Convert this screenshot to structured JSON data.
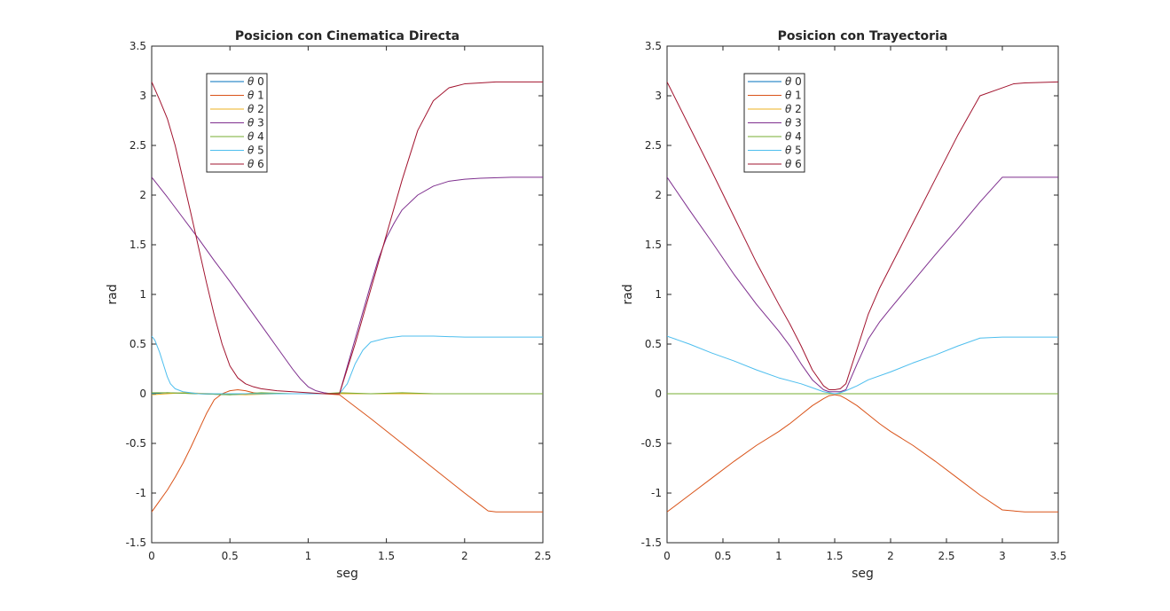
{
  "colors": {
    "series": [
      "#0072BD",
      "#D95319",
      "#EDB120",
      "#7E2F8E",
      "#77AC30",
      "#4DBEEE",
      "#A2142F"
    ],
    "axes": "#262626",
    "background": "#ffffff"
  },
  "chart_data": [
    {
      "type": "line",
      "title": "Posicion con Cinematica Directa",
      "xlabel": "seg",
      "ylabel": "rad",
      "xlim": [
        0,
        2.5
      ],
      "ylim": [
        -1.5,
        3.5
      ],
      "xticks": [
        0,
        0.5,
        1,
        1.5,
        2,
        2.5
      ],
      "xtick_labels": [
        "0",
        "0.5",
        "1",
        "1.5",
        "2",
        "2.5"
      ],
      "yticks": [
        -1.5,
        -1,
        -0.5,
        0,
        0.5,
        1,
        1.5,
        2,
        2.5,
        3,
        3.5
      ],
      "ytick_labels": [
        "-1.5",
        "-1",
        "-0.5",
        "0",
        "0.5",
        "1",
        "1.5",
        "2",
        "2.5",
        "3",
        "3.5"
      ],
      "grid": false,
      "legend_position": "top-left",
      "series": [
        {
          "name": "θ 0",
          "x": [
            0,
            0.1,
            0.3,
            0.5,
            0.7,
            0.9,
            1.1,
            1.2,
            1.4,
            1.6,
            1.8,
            2.0,
            2.2,
            2.5
          ],
          "y": [
            0.0,
            0.01,
            0.0,
            -0.01,
            0.0,
            0.0,
            0.0,
            0.0,
            0.0,
            0.0,
            0.0,
            0.0,
            0.0,
            0.0
          ]
        },
        {
          "name": "θ 1",
          "x": [
            0,
            0.05,
            0.1,
            0.15,
            0.2,
            0.25,
            0.3,
            0.35,
            0.4,
            0.45,
            0.5,
            0.55,
            0.6,
            0.65,
            0.7,
            0.8,
            0.9,
            1.0,
            1.1,
            1.2,
            1.4,
            1.6,
            1.8,
            2.0,
            2.1,
            2.15,
            2.2,
            2.3,
            2.5
          ],
          "y": [
            -1.19,
            -1.08,
            -0.97,
            -0.84,
            -0.7,
            -0.54,
            -0.37,
            -0.2,
            -0.06,
            0.0,
            0.03,
            0.04,
            0.03,
            0.01,
            0.0,
            0.0,
            0.0,
            0.0,
            0.0,
            -0.01,
            -0.25,
            -0.5,
            -0.75,
            -1.0,
            -1.12,
            -1.18,
            -1.19,
            -1.19,
            -1.19
          ]
        },
        {
          "name": "θ 2",
          "x": [
            0,
            0.1,
            0.2,
            0.4,
            0.6,
            0.8,
            1.0,
            1.2,
            1.5,
            1.8,
            2.1,
            2.5
          ],
          "y": [
            -0.01,
            0.0,
            0.01,
            0.0,
            -0.01,
            0.0,
            0.0,
            0.0,
            0.0,
            0.0,
            0.0,
            0.0
          ]
        },
        {
          "name": "θ 3",
          "x": [
            0,
            0.1,
            0.2,
            0.3,
            0.4,
            0.5,
            0.6,
            0.7,
            0.8,
            0.9,
            0.95,
            1.0,
            1.05,
            1.1,
            1.15,
            1.2,
            1.3,
            1.4,
            1.45,
            1.5,
            1.55,
            1.6,
            1.7,
            1.8,
            1.9,
            2.0,
            2.1,
            2.3,
            2.5
          ],
          "y": [
            2.18,
            1.98,
            1.77,
            1.56,
            1.34,
            1.13,
            0.91,
            0.69,
            0.47,
            0.25,
            0.15,
            0.07,
            0.03,
            0.01,
            0.0,
            0.0,
            0.55,
            1.1,
            1.36,
            1.57,
            1.72,
            1.85,
            2.0,
            2.09,
            2.14,
            2.16,
            2.17,
            2.18,
            2.18
          ]
        },
        {
          "name": "θ 4",
          "x": [
            0,
            0.1,
            0.3,
            0.5,
            0.7,
            0.9,
            1.1,
            1.2,
            1.4,
            1.6,
            1.8,
            2.0,
            2.2,
            2.5
          ],
          "y": [
            0.01,
            0.01,
            0.0,
            -0.01,
            0.01,
            0.0,
            0.0,
            0.01,
            0.0,
            0.01,
            0.0,
            0.0,
            0.0,
            0.0
          ]
        },
        {
          "name": "θ 5",
          "x": [
            0,
            0.02,
            0.05,
            0.08,
            0.1,
            0.12,
            0.15,
            0.2,
            0.3,
            0.5,
            0.8,
            1.0,
            1.2,
            1.25,
            1.3,
            1.35,
            1.4,
            1.5,
            1.6,
            1.8,
            2.0,
            2.2,
            2.5
          ],
          "y": [
            0.58,
            0.54,
            0.42,
            0.27,
            0.17,
            0.1,
            0.05,
            0.02,
            0.0,
            0.0,
            0.0,
            0.0,
            0.0,
            0.1,
            0.3,
            0.44,
            0.52,
            0.56,
            0.58,
            0.58,
            0.57,
            0.57,
            0.57
          ]
        },
        {
          "name": "θ 6",
          "x": [
            0,
            0.05,
            0.1,
            0.15,
            0.2,
            0.25,
            0.3,
            0.35,
            0.4,
            0.45,
            0.5,
            0.55,
            0.6,
            0.65,
            0.7,
            0.8,
            0.9,
            1.0,
            1.1,
            1.2,
            1.3,
            1.4,
            1.5,
            1.6,
            1.7,
            1.8,
            1.9,
            2.0,
            2.1,
            2.2,
            2.3,
            2.5
          ],
          "y": [
            3.14,
            2.96,
            2.77,
            2.5,
            2.16,
            1.82,
            1.47,
            1.12,
            0.79,
            0.5,
            0.28,
            0.16,
            0.1,
            0.07,
            0.05,
            0.03,
            0.02,
            0.01,
            0.0,
            0.0,
            0.5,
            1.05,
            1.6,
            2.15,
            2.65,
            2.95,
            3.08,
            3.12,
            3.13,
            3.14,
            3.14,
            3.14
          ]
        }
      ]
    },
    {
      "type": "line",
      "title": "Posicion con Trayectoria",
      "xlabel": "seg",
      "ylabel": "rad",
      "xlim": [
        0,
        3.5
      ],
      "ylim": [
        -1.5,
        3.5
      ],
      "xticks": [
        0,
        0.5,
        1,
        1.5,
        2,
        2.5,
        3,
        3.5
      ],
      "xtick_labels": [
        "0",
        "0.5",
        "1",
        "1.5",
        "2",
        "2.5",
        "3",
        "3.5"
      ],
      "yticks": [
        -1.5,
        -1,
        -0.5,
        0,
        0.5,
        1,
        1.5,
        2,
        2.5,
        3,
        3.5
      ],
      "ytick_labels": [
        "-1.5",
        "-1",
        "-0.5",
        "0",
        "0.5",
        "1",
        "1.5",
        "2",
        "2.5",
        "3",
        "3.5"
      ],
      "grid": false,
      "legend_position": "top-left",
      "series": [
        {
          "name": "θ 0",
          "x": [
            0,
            0.5,
            1.0,
            1.5,
            2.0,
            2.5,
            3.0,
            3.5
          ],
          "y": [
            0.0,
            0.0,
            0.0,
            0.0,
            0.0,
            0.0,
            0.0,
            0.0
          ]
        },
        {
          "name": "θ 1",
          "x": [
            0,
            0.2,
            0.4,
            0.6,
            0.8,
            1.0,
            1.1,
            1.2,
            1.3,
            1.4,
            1.45,
            1.5,
            1.55,
            1.6,
            1.7,
            1.8,
            1.9,
            2.0,
            2.2,
            2.4,
            2.6,
            2.8,
            3.0,
            3.2,
            3.5
          ],
          "y": [
            -1.19,
            -1.02,
            -0.85,
            -0.68,
            -0.52,
            -0.38,
            -0.3,
            -0.21,
            -0.12,
            -0.05,
            -0.02,
            -0.01,
            -0.02,
            -0.05,
            -0.12,
            -0.21,
            -0.3,
            -0.38,
            -0.52,
            -0.68,
            -0.85,
            -1.02,
            -1.17,
            -1.19,
            -1.19
          ]
        },
        {
          "name": "θ 2",
          "x": [
            0,
            0.5,
            1.0,
            1.5,
            2.0,
            2.5,
            3.0,
            3.5
          ],
          "y": [
            0.0,
            0.0,
            0.0,
            0.0,
            0.0,
            0.0,
            0.0,
            0.0
          ]
        },
        {
          "name": "θ 3",
          "x": [
            0,
            0.2,
            0.4,
            0.6,
            0.8,
            1.0,
            1.1,
            1.2,
            1.3,
            1.4,
            1.45,
            1.5,
            1.55,
            1.6,
            1.7,
            1.8,
            1.9,
            2.0,
            2.2,
            2.4,
            2.6,
            2.8,
            3.0,
            3.2,
            3.5
          ],
          "y": [
            2.18,
            1.85,
            1.53,
            1.2,
            0.9,
            0.63,
            0.48,
            0.3,
            0.14,
            0.04,
            0.02,
            0.02,
            0.02,
            0.04,
            0.3,
            0.55,
            0.72,
            0.86,
            1.13,
            1.4,
            1.66,
            1.93,
            2.18,
            2.18,
            2.18
          ]
        },
        {
          "name": "θ 4",
          "x": [
            0,
            0.5,
            1.0,
            1.5,
            2.0,
            2.5,
            3.0,
            3.5
          ],
          "y": [
            0.0,
            0.0,
            0.0,
            0.0,
            0.0,
            0.0,
            0.0,
            0.0
          ]
        },
        {
          "name": "θ 5",
          "x": [
            0,
            0.2,
            0.4,
            0.6,
            0.8,
            1.0,
            1.2,
            1.3,
            1.4,
            1.45,
            1.5,
            1.55,
            1.6,
            1.7,
            1.8,
            2.0,
            2.2,
            2.4,
            2.6,
            2.8,
            3.0,
            3.2,
            3.5
          ],
          "y": [
            0.58,
            0.5,
            0.41,
            0.33,
            0.24,
            0.16,
            0.1,
            0.06,
            0.02,
            0.01,
            0.0,
            0.01,
            0.03,
            0.08,
            0.14,
            0.22,
            0.31,
            0.39,
            0.48,
            0.56,
            0.57,
            0.57,
            0.57
          ]
        },
        {
          "name": "θ 6",
          "x": [
            0,
            0.2,
            0.4,
            0.6,
            0.8,
            1.0,
            1.1,
            1.2,
            1.3,
            1.4,
            1.45,
            1.5,
            1.55,
            1.6,
            1.7,
            1.8,
            1.9,
            2.0,
            2.2,
            2.4,
            2.6,
            2.8,
            3.0,
            3.1,
            3.2,
            3.5
          ],
          "y": [
            3.14,
            2.69,
            2.24,
            1.78,
            1.32,
            0.9,
            0.7,
            0.48,
            0.24,
            0.08,
            0.04,
            0.04,
            0.05,
            0.1,
            0.45,
            0.8,
            1.06,
            1.28,
            1.72,
            2.16,
            2.6,
            3.0,
            3.08,
            3.12,
            3.13,
            3.14
          ]
        }
      ]
    }
  ]
}
